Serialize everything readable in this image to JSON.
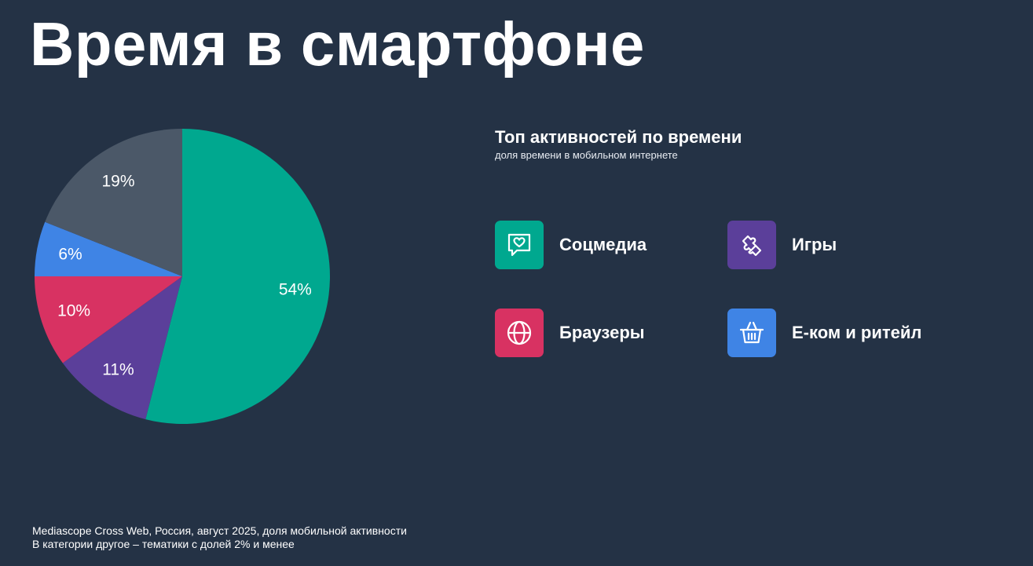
{
  "page": {
    "title": "Время в смартфоне"
  },
  "legend": {
    "title": "Топ активностей по времени",
    "subtitle": "доля времени в мобильном интернете",
    "items": [
      {
        "label": "Соцмедиа",
        "color": "#00a88f",
        "icon": "chat-heart-icon"
      },
      {
        "label": "Игры",
        "color": "#5b3f9a",
        "icon": "puzzle-icon"
      },
      {
        "label": "Браузеры",
        "color": "#d83262",
        "icon": "globe-icon"
      },
      {
        "label": "Е-ком и ритейл",
        "color": "#3f84e5",
        "icon": "basket-icon"
      }
    ]
  },
  "chart_data": {
    "type": "pie",
    "slices": [
      {
        "value": 54,
        "label": "54%",
        "color": "#00a88f"
      },
      {
        "value": 11,
        "label": "11%",
        "color": "#5b3f9a"
      },
      {
        "value": 10,
        "label": "10%",
        "color": "#d83262"
      },
      {
        "value": 6,
        "label": "6%",
        "color": "#3f84e5"
      },
      {
        "value": 19,
        "label": "19%",
        "color": "#4b5868"
      }
    ]
  },
  "footnote": {
    "line1": "Mediascope Cross Web, Россия, август 2025, доля мобильной активности",
    "line2": "В категории другое – тематики с долей 2% и менее"
  }
}
